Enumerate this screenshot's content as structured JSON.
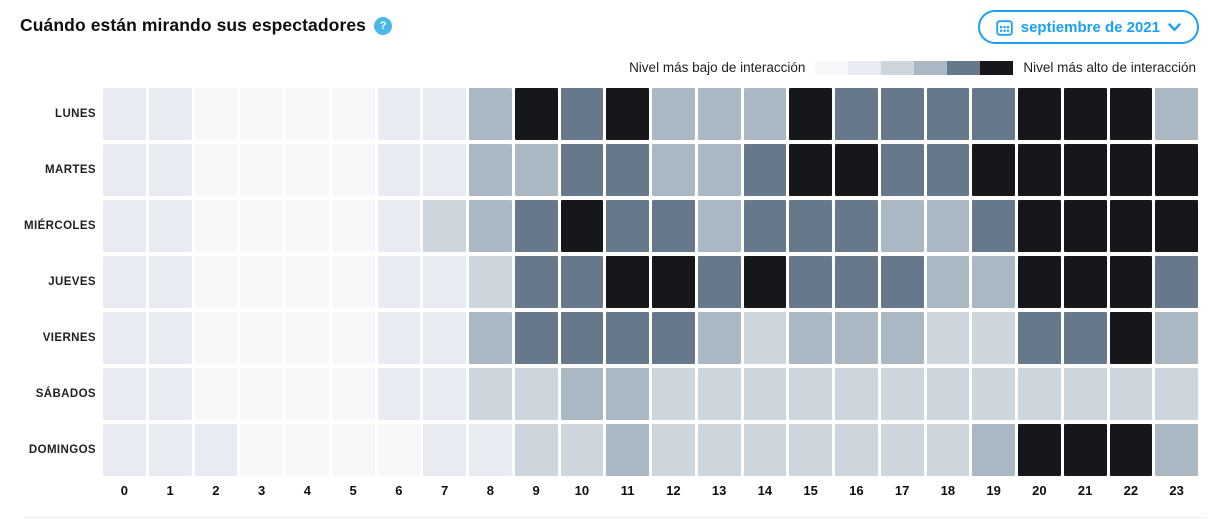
{
  "header": {
    "title": "Cuándo están mirando sus espectadores",
    "date_picker": {
      "label": "septiembre de 2021"
    }
  },
  "legend": {
    "low_label": "Nivel más bajo de interacción",
    "high_label": "Nivel más alto de interacción"
  },
  "colors": {
    "accent_blue": "#1aa0f4",
    "help_icon_blue": "#4cb8e9",
    "text_dark": "#0e0e10",
    "divider": "#eceef0"
  },
  "chart_data": {
    "type": "heatmap",
    "title": "Cuándo están mirando sus espectadores",
    "x": [
      0,
      1,
      2,
      3,
      4,
      5,
      6,
      7,
      8,
      9,
      10,
      11,
      12,
      13,
      14,
      15,
      16,
      17,
      18,
      19,
      20,
      21,
      22,
      23
    ],
    "y_categories": [
      "LUNES",
      "MARTES",
      "MIÉRCOLES",
      "JUEVES",
      "VIERNES",
      "SÁBADOS",
      "DOMINGOS"
    ],
    "palette": [
      "#f7f8fa",
      "#e8ebf2",
      "#cdd5dd",
      "#aab8c3",
      "#66788a",
      "#15171b"
    ],
    "scale": "values 1 (lowest engagement) to 6 (highest engagement), mapped to palette",
    "values": [
      [
        2,
        2,
        1,
        1,
        1,
        1,
        2,
        2,
        4,
        6,
        5,
        6,
        4,
        4,
        4,
        6,
        5,
        5,
        5,
        5,
        6,
        6,
        6,
        4
      ],
      [
        2,
        2,
        1,
        1,
        1,
        1,
        2,
        2,
        4,
        4,
        5,
        5,
        4,
        4,
        5,
        6,
        6,
        5,
        5,
        6,
        6,
        6,
        6,
        6
      ],
      [
        2,
        2,
        1,
        1,
        1,
        1,
        2,
        3,
        4,
        5,
        6,
        5,
        5,
        4,
        5,
        5,
        5,
        4,
        4,
        5,
        6,
        6,
        6,
        6
      ],
      [
        2,
        2,
        1,
        1,
        1,
        1,
        2,
        2,
        3,
        5,
        5,
        6,
        6,
        5,
        6,
        5,
        5,
        5,
        4,
        4,
        6,
        6,
        6,
        5
      ],
      [
        2,
        2,
        1,
        1,
        1,
        1,
        2,
        2,
        4,
        5,
        5,
        5,
        5,
        4,
        3,
        4,
        4,
        4,
        3,
        3,
        5,
        5,
        6,
        4
      ],
      [
        2,
        2,
        1,
        1,
        1,
        1,
        2,
        2,
        3,
        3,
        4,
        4,
        3,
        3,
        3,
        3,
        3,
        3,
        3,
        3,
        3,
        3,
        3,
        3
      ],
      [
        2,
        2,
        2,
        1,
        1,
        1,
        1,
        2,
        2,
        3,
        3,
        4,
        3,
        3,
        3,
        3,
        3,
        3,
        3,
        4,
        6,
        6,
        6,
        4
      ]
    ],
    "legend_position": "top-right",
    "grid": false
  }
}
